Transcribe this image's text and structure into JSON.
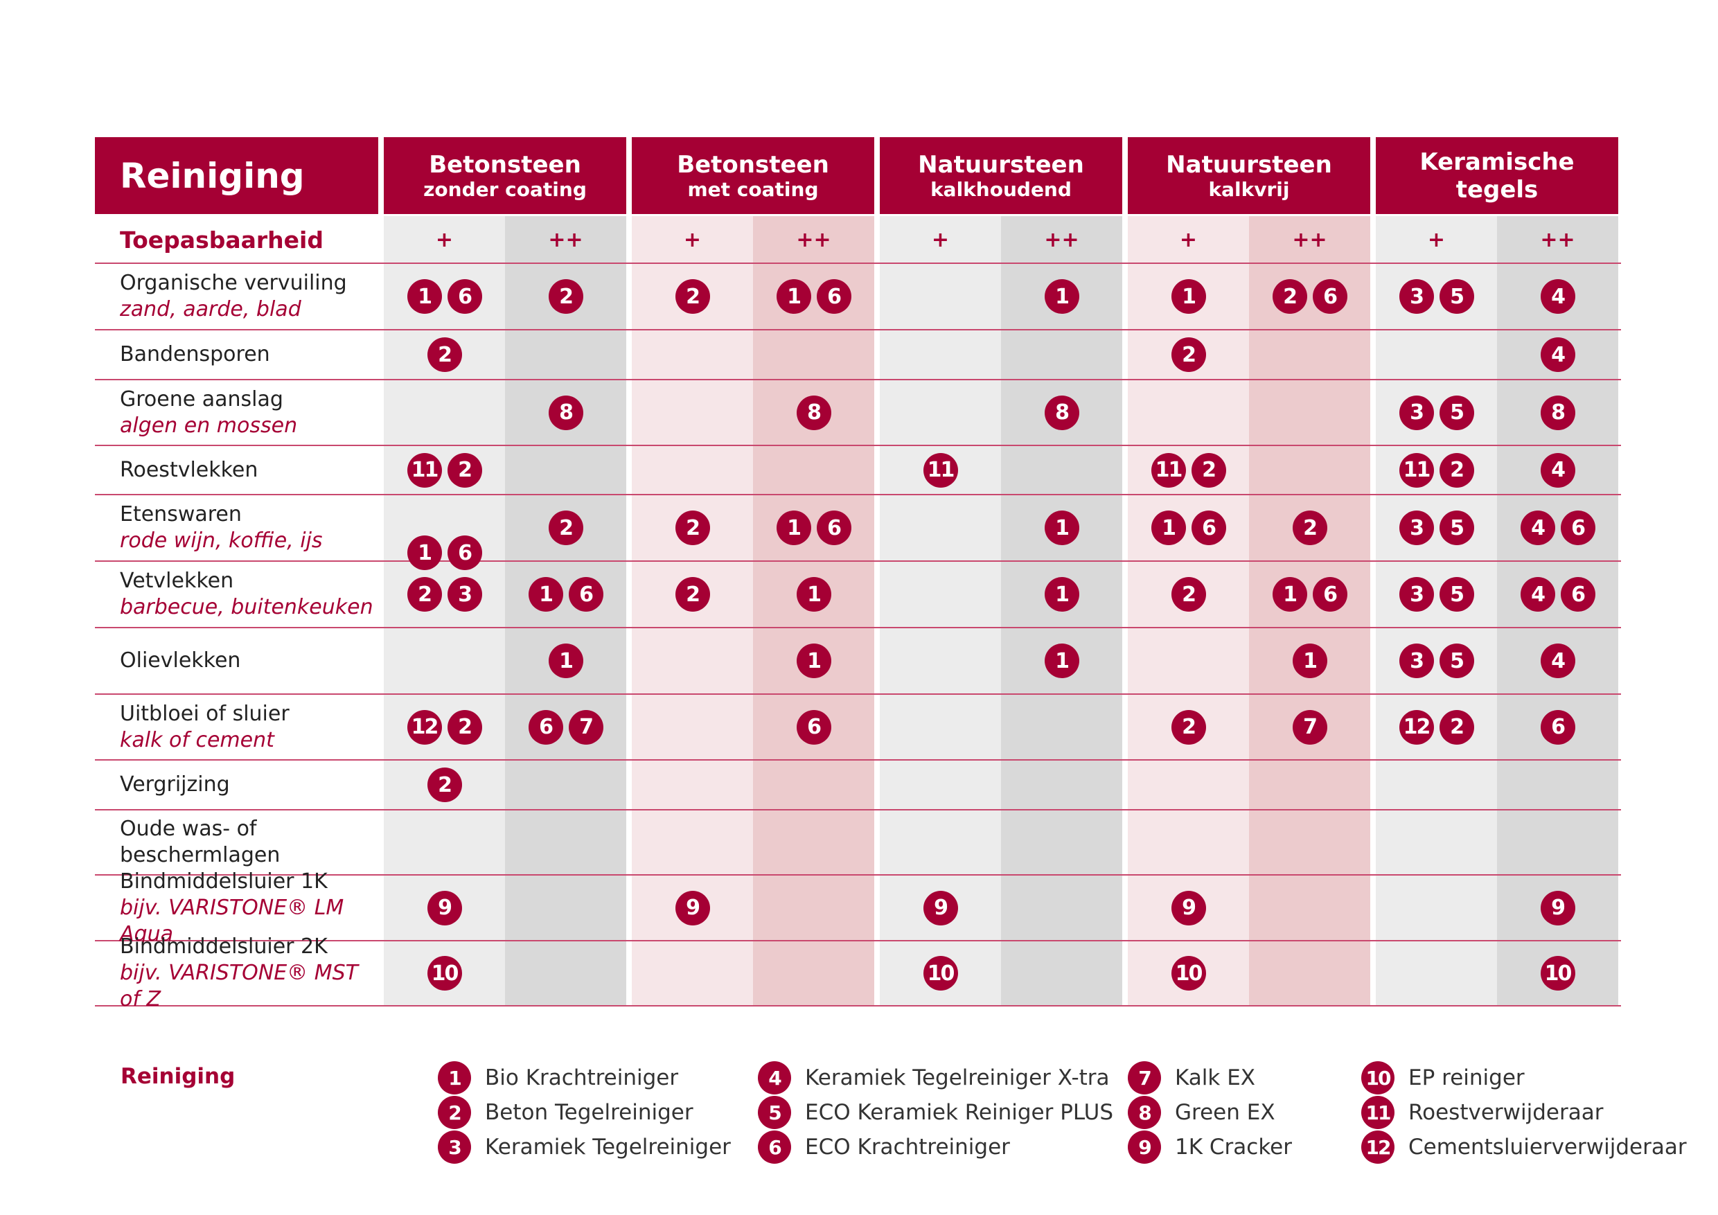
{
  "title": "Reiniging",
  "toepasbaarheid_label": "Toepasbaarheid",
  "applicability_symbols": [
    "+",
    "++"
  ],
  "columns": [
    {
      "main": "Betonsteen",
      "sub": "zonder coating"
    },
    {
      "main": "Betonsteen",
      "sub": "met coating"
    },
    {
      "main": "Natuursteen",
      "sub": "kalkhoudend"
    },
    {
      "main": "Natuursteen",
      "sub": "kalkvrij"
    },
    {
      "main": "Keramische tegels",
      "sub": ""
    }
  ],
  "colors": {
    "brand": "#a50034",
    "light_gray": "#ececec",
    "dark_gray": "#d9d9d9",
    "light_pink": "#f6e6e8",
    "dark_pink": "#eccbcd"
  },
  "rows": [
    {
      "label": "Organische vervuiling",
      "sub": "zand, aarde, blad",
      "cells": [
        [
          "1",
          "6"
        ],
        [
          "2"
        ],
        [
          "2"
        ],
        [
          "1",
          "6"
        ],
        [],
        [
          "1"
        ],
        [
          "1"
        ],
        [
          "2",
          "6"
        ],
        [
          "3",
          "5"
        ],
        [
          "4"
        ]
      ]
    },
    {
      "label": "Bandensporen",
      "sub": "",
      "cells": [
        [
          "2"
        ],
        [],
        [],
        [],
        [],
        [],
        [
          "2"
        ],
        [],
        [],
        [
          "4"
        ]
      ]
    },
    {
      "label": "Groene aanslag",
      "sub": "algen en mossen",
      "cells": [
        [],
        [
          "8"
        ],
        [],
        [
          "8"
        ],
        [],
        [
          "8"
        ],
        [],
        [],
        [
          "3",
          "5"
        ],
        [
          "8"
        ]
      ]
    },
    {
      "label": "Roestvlekken",
      "sub": "",
      "cells": [
        [
          "11",
          "2"
        ],
        [],
        [],
        [],
        [
          "11"
        ],
        [],
        [
          "11",
          "2"
        ],
        [],
        [
          "11",
          "2"
        ],
        [
          "4"
        ]
      ]
    },
    {
      "label": "Etenswaren",
      "sub": "rode wijn, koffie, ijs",
      "cells": [
        [],
        [
          "2"
        ],
        [
          "2"
        ],
        [
          "1",
          "6"
        ],
        [],
        [
          "1"
        ],
        [
          "1",
          "6"
        ],
        [
          "2"
        ],
        [
          "3",
          "5"
        ],
        [
          "4",
          "6"
        ]
      ]
    },
    {
      "label": "Vetvlekken",
      "sub": "barbecue, buitenkeuken",
      "cells": [
        [
          "2",
          "3"
        ],
        [
          "1",
          "6"
        ],
        [
          "2"
        ],
        [
          "1"
        ],
        [],
        [
          "1"
        ],
        [
          "2"
        ],
        [
          "1",
          "6"
        ],
        [
          "3",
          "5"
        ],
        [
          "4",
          "6"
        ]
      ]
    },
    {
      "label": "Olievlekken",
      "sub": "",
      "cells": [
        [],
        [
          "1"
        ],
        [],
        [
          "1"
        ],
        [],
        [
          "1"
        ],
        [],
        [
          "1"
        ],
        [
          "3",
          "5"
        ],
        [
          "4"
        ]
      ]
    },
    {
      "label": "Uitbloei of sluier",
      "sub": "kalk of cement",
      "cells": [
        [
          "12",
          "2"
        ],
        [
          "6",
          "7"
        ],
        [],
        [
          "6"
        ],
        [],
        [],
        [
          "2"
        ],
        [
          "7"
        ],
        [
          "12",
          "2"
        ],
        [
          "6"
        ]
      ]
    },
    {
      "label": "Vergrijzing",
      "sub": "",
      "cells": [
        [
          "2"
        ],
        [],
        [],
        [],
        [],
        [],
        [],
        [],
        [],
        []
      ]
    },
    {
      "label": "Oude was- of",
      "sub": "",
      "label2": "beschermlagen",
      "cells": [
        [],
        [],
        [],
        [],
        [],
        [],
        [],
        [],
        [],
        []
      ]
    },
    {
      "label": "Bindmiddelsluier 1K",
      "sub": "bijv. VARISTONE® LM Aqua",
      "cells": [
        [
          "9"
        ],
        [],
        [
          "9"
        ],
        [],
        [
          "9"
        ],
        [],
        [
          "9"
        ],
        [],
        [],
        [
          "9"
        ]
      ]
    },
    {
      "label": "Bindmiddelsluier 2K",
      "sub": "bijv. VARISTONE® MST of Z",
      "cells": [
        [
          "10"
        ],
        [],
        [],
        [],
        [
          "10"
        ],
        [],
        [
          "10"
        ],
        [],
        [],
        [
          "10"
        ]
      ]
    }
  ],
  "extra_badge": [
    "1",
    "6"
  ],
  "legend": {
    "title": "Reiniging",
    "items": [
      {
        "num": "1",
        "name": "Bio Krachtreiniger"
      },
      {
        "num": "2",
        "name": "Beton Tegelreiniger"
      },
      {
        "num": "3",
        "name": "Keramiek Tegelreiniger"
      },
      {
        "num": "4",
        "name": "Keramiek Tegelreiniger X-tra"
      },
      {
        "num": "5",
        "name": "ECO Keramiek Reiniger PLUS"
      },
      {
        "num": "6",
        "name": "ECO Krachtreiniger"
      },
      {
        "num": "7",
        "name": "Kalk EX"
      },
      {
        "num": "8",
        "name": "Green EX"
      },
      {
        "num": "9",
        "name": "1K Cracker"
      },
      {
        "num": "10",
        "name": "EP reiniger"
      },
      {
        "num": "11",
        "name": "Roestverwijderaar"
      },
      {
        "num": "12",
        "name": "Cementsluierverwijderaar"
      }
    ]
  }
}
